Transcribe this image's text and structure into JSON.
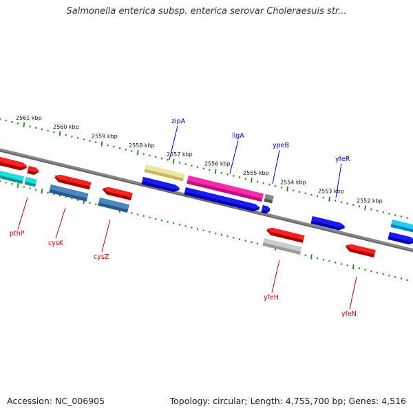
{
  "title": "Salmonella enterica subsp. enterica serovar Choleraesuis str...",
  "footer": {
    "accession": "Accession: NC_006905",
    "summary": "Topology: circular; Length: 4,755,700 bp; Genes: 4,516"
  },
  "colors": {
    "forward_label": "#0000c8",
    "reverse_label": "#c80000",
    "backbone": "#888888",
    "ticks": "#1a8a1a"
  },
  "scale_labels": [
    "2561 kbp",
    "2560 kbp",
    "2559 kbp",
    "2558 kbp",
    "2557 kbp",
    "2556 kbp",
    "2555 kbp",
    "2554 kbp",
    "2553 kbp",
    "2552 kbp"
  ],
  "genes": [
    {
      "name": "zipA",
      "strand": "forward"
    },
    {
      "name": "ligA",
      "strand": "forward"
    },
    {
      "name": "ypeB",
      "strand": "forward"
    },
    {
      "name": "yfeR",
      "strand": "forward"
    },
    {
      "name": "pthP",
      "strand": "reverse"
    },
    {
      "name": "cysK",
      "strand": "reverse"
    },
    {
      "name": "cysZ",
      "strand": "reverse"
    },
    {
      "name": "yfeH",
      "strand": "reverse"
    },
    {
      "name": "yfeN",
      "strand": "reverse"
    }
  ]
}
